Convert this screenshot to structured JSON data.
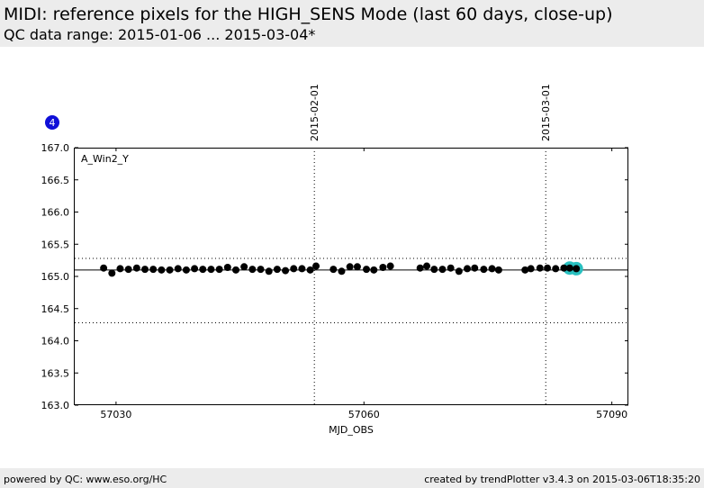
{
  "header": {
    "title": "MIDI: reference pixels for the HIGH_SENS Mode (last 60 days, close-up)",
    "subtitle": "QC data range: 2015-01-06 ... 2015-03-04*"
  },
  "footer": {
    "left": "powered by QC: www.eso.org/HC",
    "right": "created by trendPlotter v3.4.3 on 2015-03-06T18:35:20"
  },
  "chart_data": {
    "type": "scatter",
    "panel_badge": "4",
    "series_label": "A_Win2_Y",
    "xlabel": "MJD_OBS",
    "xlim": [
      57025,
      57092
    ],
    "ylim": [
      163.0,
      167.0
    ],
    "xticks": [
      57030,
      57060,
      57090
    ],
    "yticks": [
      163.0,
      163.5,
      164.0,
      164.5,
      165.0,
      165.5,
      166.0,
      166.5,
      167.0
    ],
    "reference_line": 165.1,
    "limit_lines": [
      165.28,
      164.28
    ],
    "date_markers": [
      {
        "x": 57054,
        "label": "2015-02-01"
      },
      {
        "x": 57082,
        "label": "2015-03-01"
      }
    ],
    "colors": {
      "points": "#000000",
      "highlight": "#29c0c0",
      "badge": "#1010d8"
    },
    "x": [
      57028.5,
      57029.5,
      57030.5,
      57031.5,
      57032.5,
      57033.5,
      57034.5,
      57035.5,
      57036.5,
      57037.5,
      57038.5,
      57039.5,
      57040.5,
      57041.5,
      57042.5,
      57043.5,
      57044.5,
      57045.5,
      57046.5,
      57047.5,
      57048.5,
      57049.5,
      57050.5,
      57051.5,
      57052.5,
      57053.5,
      57054.2,
      57056.3,
      57057.3,
      57058.3,
      57059.2,
      57060.3,
      57061.2,
      57062.3,
      57063.2,
      57066.8,
      57067.6,
      57068.5,
      57069.5,
      57070.5,
      57071.5,
      57072.5,
      57073.4,
      57074.5,
      57075.5,
      57076.3,
      57079.5,
      57080.2,
      57081.3,
      57082.2,
      57083.2,
      57084.2
    ],
    "y": [
      165.13,
      165.05,
      165.12,
      165.11,
      165.13,
      165.11,
      165.11,
      165.1,
      165.1,
      165.12,
      165.1,
      165.12,
      165.11,
      165.11,
      165.11,
      165.14,
      165.1,
      165.15,
      165.11,
      165.11,
      165.08,
      165.11,
      165.09,
      165.12,
      165.12,
      165.1,
      165.16,
      165.11,
      165.08,
      165.15,
      165.15,
      165.11,
      165.1,
      165.14,
      165.16,
      165.13,
      165.16,
      165.11,
      165.11,
      165.13,
      165.08,
      165.12,
      165.13,
      165.11,
      165.12,
      165.1,
      165.1,
      165.12,
      165.13,
      165.13,
      165.12,
      165.13
    ],
    "highlight_x": [
      57084.9,
      57085.7
    ],
    "highlight_y": [
      165.13,
      165.12
    ]
  }
}
